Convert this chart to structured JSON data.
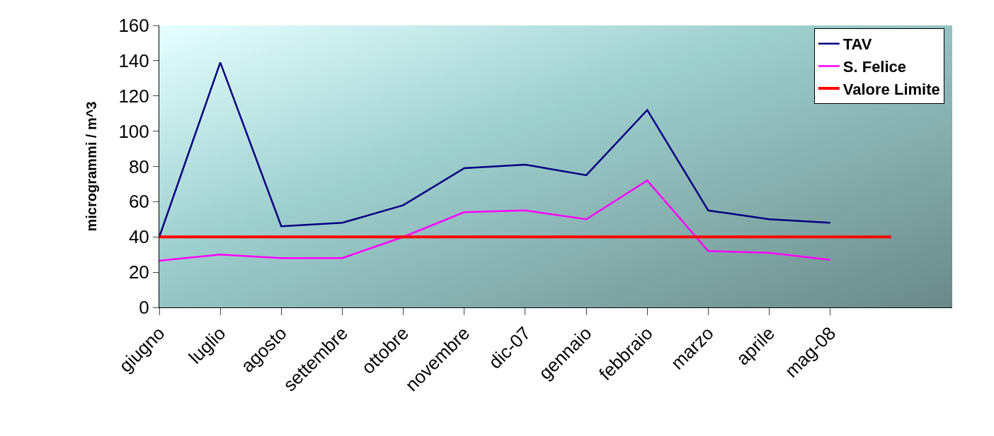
{
  "chart_data": {
    "type": "line",
    "ylabel": "microgrammi / m^3",
    "categories": [
      "giugno",
      "luglio",
      "agosto",
      "settembre",
      "ottobre",
      "novembre",
      "dic-07",
      "gennaio",
      "febbraio",
      "marzo",
      "aprile",
      "mag-08",
      null
    ],
    "series": [
      {
        "name": "TAV",
        "color": "#000080",
        "values": [
          40,
          139,
          46,
          48,
          58,
          79,
          81,
          75,
          112,
          55,
          50,
          48,
          null
        ]
      },
      {
        "name": "S. Felice",
        "color": "#ff00ff",
        "values": [
          26.5,
          30,
          28,
          28,
          40,
          54,
          55,
          50,
          72,
          32,
          31,
          27,
          null
        ]
      },
      {
        "name": "Valore Limite",
        "color": "#ff0000",
        "values": [
          40,
          40,
          40,
          40,
          40,
          40,
          40,
          40,
          40,
          40,
          40,
          40,
          40
        ]
      }
    ],
    "ylim": [
      0,
      160
    ],
    "yticks": [
      0,
      20,
      40,
      60,
      80,
      100,
      120,
      140,
      160
    ],
    "grid": false,
    "legend": "top right",
    "marker": "none",
    "line_style": "solid"
  }
}
